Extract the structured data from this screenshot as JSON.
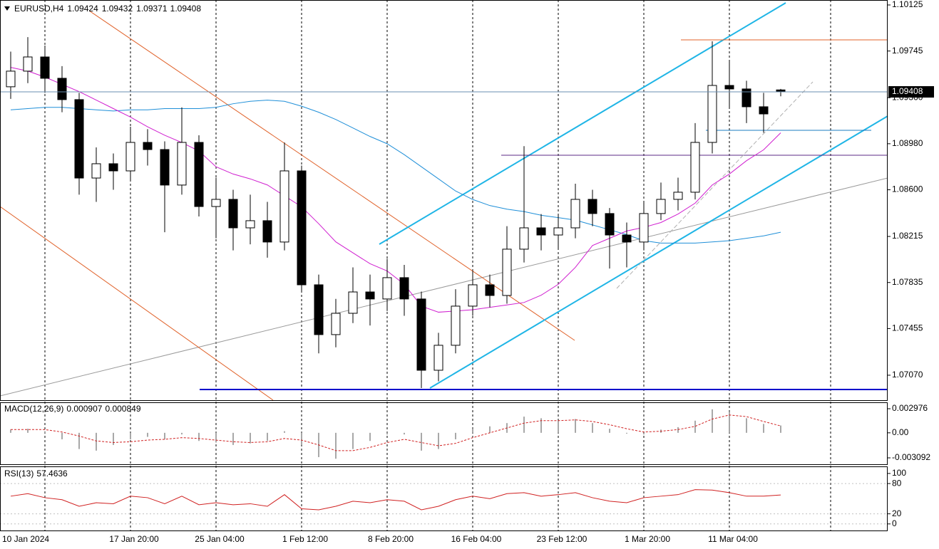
{
  "chart_data": [
    {
      "type": "candlestick",
      "symbol": "EURUSD,H4",
      "categories": [
        "10 Jan 2024",
        null,
        null,
        null,
        null,
        null,
        null,
        "17 Jan 20:00",
        null,
        null,
        null,
        null,
        "25 Jan 04:00",
        null,
        null,
        null,
        null,
        "1 Feb 12:00",
        null,
        null,
        null,
        null,
        "8 Feb 20:00",
        null,
        null,
        null,
        null,
        "16 Feb 04:00",
        null,
        null,
        null,
        null,
        "23 Feb 12:00",
        null,
        null,
        null,
        null,
        "1 Mar 20:00",
        null,
        null,
        null,
        null,
        "11 Mar 04:00",
        null,
        null,
        null
      ],
      "open": [
        1.0945,
        1.09579,
        1.09696,
        1.0952,
        1.09344,
        1.08697,
        1.08815,
        1.08756,
        1.08991,
        1.08932,
        1.08639,
        1.08991,
        1.08462,
        1.08521,
        1.08286,
        1.08345,
        1.08169,
        1.08756,
        1.07816,
        1.07405,
        1.07581,
        1.07757,
        1.07699,
        1.07875,
        1.07699,
        1.07111,
        1.07317,
        1.0764,
        1.07816,
        1.07728,
        1.0811,
        1.08286,
        1.08227,
        1.08286,
        1.08521,
        1.08404,
        1.08227,
        1.08169,
        1.08404,
        1.08521,
        1.0858,
        1.08991,
        1.09461,
        1.09432,
        1.09285,
        1.09424
      ],
      "high": [
        1.0974,
        1.0986,
        1.0979,
        1.0962,
        1.094,
        1.0895,
        1.089,
        1.0912,
        1.091,
        1.09,
        1.0928,
        1.0905,
        1.087,
        1.086,
        1.0856,
        1.085,
        1.0899,
        1.088,
        1.079,
        1.077,
        1.0796,
        1.079,
        1.0803,
        1.0798,
        1.0776,
        1.0742,
        1.0778,
        1.0793,
        1.079,
        1.083,
        1.0896,
        1.084,
        1.084,
        1.0865,
        1.086,
        1.0845,
        1.0833,
        1.085,
        1.0866,
        1.087,
        1.0915,
        1.09825,
        1.0966,
        1.095,
        1.094,
        1.09432
      ],
      "low": [
        1.0935,
        1.0948,
        1.094,
        1.0924,
        1.0856,
        1.085,
        1.086,
        1.0868,
        1.088,
        1.0825,
        1.0856,
        1.0838,
        1.082,
        1.081,
        1.0815,
        1.0804,
        1.081,
        1.0776,
        1.0725,
        1.073,
        1.075,
        1.0748,
        1.076,
        1.0756,
        1.06964,
        1.0702,
        1.0725,
        1.0756,
        1.0763,
        1.0766,
        1.08,
        1.081,
        1.0812,
        1.082,
        1.083,
        1.0795,
        1.0796,
        1.081,
        1.0835,
        1.0843,
        1.0852,
        1.089,
        1.0928,
        1.0915,
        1.0907,
        1.09371
      ],
      "close": [
        1.09579,
        1.09696,
        1.0952,
        1.09344,
        1.08697,
        1.08815,
        1.08756,
        1.08991,
        1.08932,
        1.08639,
        1.08991,
        1.08462,
        1.08521,
        1.08286,
        1.08345,
        1.08169,
        1.08756,
        1.07816,
        1.07405,
        1.07581,
        1.07757,
        1.07699,
        1.07875,
        1.07699,
        1.07111,
        1.07317,
        1.0764,
        1.07816,
        1.07728,
        1.0811,
        1.08286,
        1.08227,
        1.08286,
        1.08521,
        1.08404,
        1.08227,
        1.08169,
        1.08404,
        1.08521,
        1.0858,
        1.08991,
        1.09461,
        1.09432,
        1.09285,
        1.09226,
        1.09408
      ],
      "up_color": "#ffffff",
      "down_color": "#000000",
      "moving_averages": [
        {
          "color": "#1f8fd8",
          "values": [
            1.0926,
            1.0927,
            1.0928,
            1.0928,
            1.0927,
            1.0926,
            1.0925,
            1.0926,
            1.0926,
            1.0927,
            1.0927,
            1.0927,
            1.0928,
            1.0931,
            1.0933,
            1.0934,
            1.0933,
            1.0929,
            1.0924,
            1.0918,
            1.0911,
            1.0904,
            1.0898,
            1.0889,
            1.0879,
            1.0869,
            1.0859,
            1.0852,
            1.0847,
            1.0844,
            1.0842,
            1.0839,
            1.0837,
            1.0835,
            1.0831,
            1.0827,
            1.0823,
            1.0818,
            1.0816,
            1.0816,
            1.0816,
            1.0817,
            1.0818,
            1.082,
            1.0822,
            1.0825
          ]
        },
        {
          "color": "#d01fd0",
          "values": [
            1.0961,
            1.0958,
            1.0953,
            1.0947,
            1.0941,
            1.0934,
            1.0927,
            1.092,
            1.0912,
            1.0905,
            1.0899,
            1.0892,
            1.0879,
            1.0873,
            1.0869,
            1.0864,
            1.0855,
            1.0846,
            1.0832,
            1.0817,
            1.0808,
            1.0799,
            1.0793,
            1.0782,
            1.0764,
            1.0759,
            1.076,
            1.0761,
            1.0763,
            1.0765,
            1.0767,
            1.0773,
            1.0782,
            1.0796,
            1.0814,
            1.082,
            1.0826,
            1.0829,
            1.0833,
            1.084,
            1.0849,
            1.0864,
            1.0873,
            1.0884,
            1.0893,
            1.0907
          ]
        }
      ],
      "ylim": [
        1.06864,
        1.10166
      ],
      "yticks": [
        1.10125,
        1.09745,
        {
          "value": 1.0936,
          "label": "1.09360"
        },
        {
          "value": 1.0898,
          "label": "1.08980"
        },
        {
          "value": 1.086,
          "label": "1.08600"
        },
        1.08215,
        1.07835,
        1.07455,
        {
          "value": 1.0707,
          "label": "1.07070"
        }
      ]
    },
    {
      "type": "macd",
      "title": "MACD(12,26,9)",
      "histogram": [
        0.0004,
        0.0005,
        0.0002,
        -0.0008,
        -0.002,
        -0.0022,
        -0.0015,
        -0.0008,
        -0.0005,
        -0.0008,
        -0.0002,
        -0.001,
        -0.0012,
        -0.0015,
        -0.0013,
        -0.001,
        0.0002,
        -0.0015,
        -0.003,
        -0.0032,
        -0.002,
        -0.001,
        -0.0002,
        -0.0002,
        -0.0022,
        -0.002,
        -0.0008,
        0.0005,
        0.0008,
        0.0012,
        0.002,
        0.0018,
        0.0015,
        0.0017,
        0.0012,
        0.0005,
        -0.0001,
        -0.0002,
        0.0004,
        0.0007,
        0.0015,
        0.0029,
        0.0026,
        0.0018,
        0.0011,
        0.000907
      ],
      "signal": [
        0.0004,
        0.0004,
        0.0004,
        0.0001,
        -0.0004,
        -0.001,
        -0.0012,
        -0.0011,
        -0.0009,
        -0.0008,
        -0.0006,
        -0.0007,
        -0.0009,
        -0.0011,
        -0.0012,
        -0.0011,
        -0.0007,
        -0.0009,
        -0.0015,
        -0.0022,
        -0.0022,
        -0.0018,
        -0.0012,
        -0.0008,
        -0.0012,
        -0.0016,
        -0.0013,
        -0.0006,
        0,
        0.0006,
        0.0012,
        0.0015,
        0.0015,
        0.0016,
        0.0014,
        0.001,
        0.0005,
        0.0001,
        0.0002,
        0.0004,
        0.0008,
        0.0017,
        0.0022,
        0.002,
        0.0014,
        0.000849
      ],
      "histogram_color": "#a8a8a8",
      "signal_color": "#d02020",
      "ylim": [
        -0.003883,
        0.003767
      ],
      "yticks": [
        0.002976,
        {
          "value": 0,
          "label": "0.00"
        },
        -0.003092
      ]
    },
    {
      "type": "rsi",
      "title": "RSI(13)",
      "values": [
        55,
        60,
        52,
        48,
        35,
        42,
        40,
        55,
        52,
        40,
        55,
        38,
        42,
        38,
        40,
        35,
        58,
        30,
        28,
        35,
        45,
        42,
        48,
        45,
        28,
        35,
        48,
        55,
        50,
        60,
        62,
        55,
        58,
        62,
        52,
        45,
        42,
        52,
        55,
        58,
        68,
        67,
        62,
        55,
        55,
        57.4636
      ],
      "color": "#d02020",
      "ylim": [
        -13,
        114
      ],
      "yticks": [
        100,
        80,
        20,
        0
      ]
    }
  ]
}
